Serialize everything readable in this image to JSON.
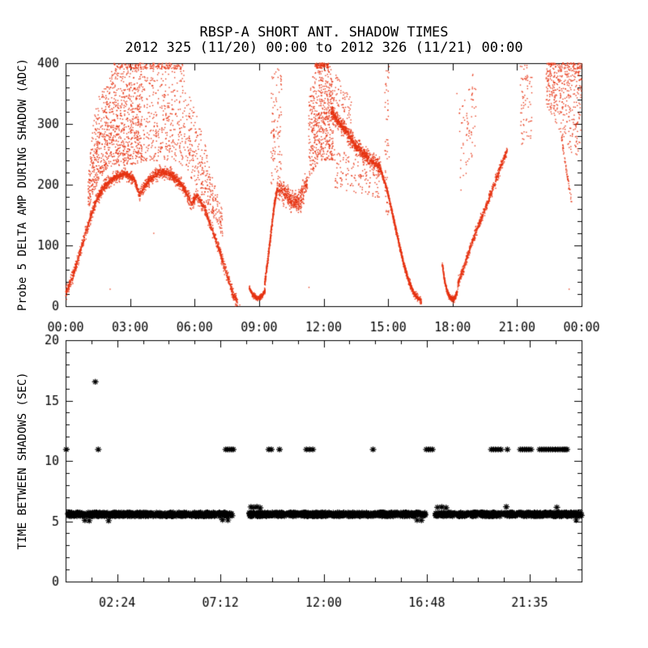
{
  "title": {
    "line1": "RBSP-A SHORT ANT. SHADOW TIMES",
    "line2": "2012 325 (11/20) 00:00 to 2012 326 (11/21) 00:00"
  },
  "colors": {
    "background": "#ffffff",
    "axis": "#000000",
    "top_points": "#e63312",
    "bottom_points": "#000000"
  },
  "chart_data": [
    {
      "type": "scatter",
      "panel": "top",
      "ylabel": "Probe 5 DELTA AMP DURING SHADOW (ADC)",
      "xlim": [
        0,
        24
      ],
      "ylim": [
        0,
        400
      ],
      "marker": "dot",
      "x_ticks": {
        "majors": [
          {
            "t": 0,
            "label": "00:00"
          },
          {
            "t": 3,
            "label": "03:00"
          },
          {
            "t": 6,
            "label": "06:00"
          },
          {
            "t": 9,
            "label": "09:00"
          },
          {
            "t": 12,
            "label": "12:00"
          },
          {
            "t": 15,
            "label": "15:00"
          },
          {
            "t": 18,
            "label": "18:00"
          },
          {
            "t": 21,
            "label": "21:00"
          },
          {
            "t": 24,
            "label": "00:00"
          }
        ],
        "minor_divs": 1
      },
      "y_ticks": {
        "majors": [
          0,
          100,
          200,
          300,
          400
        ],
        "minor_divs": 5
      },
      "clusters": [
        {
          "name": "arch1-band",
          "kind": "band",
          "core": true,
          "spread": 15,
          "n": 1700,
          "pts": [
            [
              0,
              20
            ],
            [
              0.35,
              50
            ],
            [
              0.7,
              92
            ],
            [
              1.05,
              135
            ],
            [
              1.4,
              172
            ],
            [
              1.8,
              198
            ],
            [
              2.3,
              212
            ],
            [
              2.8,
              218
            ],
            [
              3.2,
              208
            ],
            [
              3.45,
              183
            ],
            [
              3.65,
              196
            ],
            [
              3.95,
              210
            ],
            [
              4.4,
              221
            ],
            [
              4.9,
              217
            ],
            [
              5.3,
              204
            ],
            [
              5.6,
              188
            ],
            [
              5.85,
              168
            ],
            [
              6.1,
              183
            ],
            [
              6.45,
              162
            ],
            [
              6.8,
              128
            ],
            [
              7.15,
              92
            ],
            [
              7.5,
              52
            ],
            [
              7.8,
              18
            ],
            [
              8.0,
              6
            ]
          ]
        },
        {
          "name": "arch1-cloud-left",
          "kind": "cloud",
          "t": [
            1.05,
            3.55
          ],
          "bias": 0.7,
          "n": 1000,
          "lo": [
            [
              1.05,
              160
            ],
            [
              1.4,
              195
            ],
            [
              2.0,
              230
            ],
            [
              3.55,
              235
            ]
          ],
          "hi": [
            [
              1.05,
              230
            ],
            [
              1.35,
              320
            ],
            [
              1.7,
              365
            ],
            [
              2.25,
              400
            ],
            [
              3.55,
              400
            ]
          ]
        },
        {
          "name": "arch1-cloud-right",
          "kind": "cloud",
          "t": [
            3.55,
            7.3
          ],
          "bias": 0.75,
          "n": 650,
          "lo": [
            [
              3.55,
              238
            ],
            [
              5.0,
              240
            ],
            [
              6.0,
              205
            ],
            [
              7.3,
              115
            ]
          ],
          "hi": [
            [
              3.55,
              400
            ],
            [
              5.45,
              400
            ],
            [
              5.9,
              340
            ],
            [
              6.3,
              300
            ],
            [
              6.7,
              235
            ],
            [
              7.3,
              160
            ]
          ]
        },
        {
          "name": "arch1-top-clip",
          "kind": "cloud",
          "t": [
            2.25,
            5.45
          ],
          "n": 160,
          "lo": [
            [
              2.25,
              390
            ],
            [
              5.45,
              390
            ]
          ],
          "hi": [
            [
              2.25,
              400
            ],
            [
              5.45,
              400
            ]
          ]
        },
        {
          "name": "hump2-hook",
          "kind": "band",
          "core": true,
          "spread": 6,
          "n": 240,
          "pts": [
            [
              8.55,
              30
            ],
            [
              8.7,
              19
            ],
            [
              8.9,
              13
            ],
            [
              9.1,
              15
            ],
            [
              9.28,
              26
            ]
          ]
        },
        {
          "name": "hump2-rise",
          "kind": "band",
          "core": true,
          "spread": 13,
          "n": 260,
          "pts": [
            [
              9.25,
              32
            ],
            [
              9.4,
              75
            ],
            [
              9.55,
              120
            ],
            [
              9.7,
              165
            ],
            [
              9.85,
              195
            ]
          ]
        },
        {
          "name": "hump2-column",
          "kind": "cloud",
          "t": [
            9.55,
            10.05
          ],
          "n": 100,
          "lo": [
            [
              9.55,
              200
            ],
            [
              10.05,
              215
            ]
          ],
          "hi": [
            [
              9.55,
              392
            ],
            [
              10.05,
              390
            ]
          ]
        },
        {
          "name": "hump2-mid-band",
          "kind": "band",
          "spread": 26,
          "n": 430,
          "pts": [
            [
              9.85,
              195
            ],
            [
              10.2,
              185
            ],
            [
              10.6,
              170
            ],
            [
              10.95,
              178
            ],
            [
              11.25,
              205
            ]
          ]
        },
        {
          "name": "hump2-peak",
          "kind": "cloud",
          "t": [
            11.3,
            12.45
          ],
          "bias": 0.85,
          "n": 540,
          "lo": [
            [
              11.3,
              210
            ],
            [
              11.8,
              238
            ],
            [
              12.45,
              240
            ]
          ],
          "hi": [
            [
              11.3,
              335
            ],
            [
              11.55,
              398
            ],
            [
              12.25,
              400
            ],
            [
              12.45,
              360
            ]
          ]
        },
        {
          "name": "hump2-top-clip",
          "kind": "cloud",
          "t": [
            11.6,
            12.25
          ],
          "n": 90,
          "lo": [
            [
              11.6,
              392
            ],
            [
              12.25,
              392
            ]
          ],
          "hi": [
            [
              11.6,
              400
            ],
            [
              12.25,
              400
            ]
          ]
        },
        {
          "name": "hump2-upper-sparse",
          "kind": "cloud",
          "t": [
            12.25,
            13.3
          ],
          "n": 70,
          "lo": [
            [
              12.25,
              345
            ],
            [
              13.3,
              300
            ]
          ],
          "hi": [
            [
              12.25,
              400
            ],
            [
              13.3,
              340
            ]
          ]
        },
        {
          "name": "hump2-descend",
          "kind": "band",
          "core": true,
          "spread": 20,
          "n": 620,
          "pts": [
            [
              12.35,
              322
            ],
            [
              12.7,
              303
            ],
            [
              13.1,
              285
            ],
            [
              13.5,
              263
            ],
            [
              13.9,
              249
            ],
            [
              14.3,
              237
            ],
            [
              14.65,
              228
            ]
          ]
        },
        {
          "name": "hump2-below-sparse",
          "kind": "cloud",
          "t": [
            12.5,
            14.6
          ],
          "n": 130,
          "lo": [
            [
              12.5,
              195
            ],
            [
              14.6,
              178
            ]
          ],
          "hi": [
            [
              12.5,
              265
            ],
            [
              14.6,
              215
            ]
          ]
        },
        {
          "name": "column-1500",
          "kind": "cloud",
          "t": [
            14.85,
            15.05
          ],
          "n": 55,
          "lo": [
            [
              14.85,
              150
            ],
            [
              15.05,
              150
            ]
          ],
          "hi": [
            [
              14.85,
              400
            ],
            [
              15.05,
              400
            ]
          ]
        },
        {
          "name": "hump2-tail-main",
          "kind": "band",
          "core": true,
          "spread": 9,
          "n": 450,
          "pts": [
            [
              14.65,
              225
            ],
            [
              14.95,
              192
            ],
            [
              15.2,
              152
            ],
            [
              15.45,
              112
            ],
            [
              15.7,
              72
            ],
            [
              15.95,
              42
            ],
            [
              16.25,
              18
            ],
            [
              16.55,
              8
            ]
          ]
        },
        {
          "name": "hump2-tail-second",
          "kind": "band",
          "spread": 6,
          "n": 200,
          "pts": [
            [
              15.15,
              162
            ],
            [
              15.4,
              122
            ],
            [
              15.65,
              82
            ],
            [
              15.9,
              50
            ],
            [
              16.12,
              26
            ]
          ]
        },
        {
          "name": "hump3-hook",
          "kind": "band",
          "core": true,
          "spread": 7,
          "n": 290,
          "pts": [
            [
              17.52,
              70
            ],
            [
              17.62,
              44
            ],
            [
              17.75,
              24
            ],
            [
              17.9,
              13
            ],
            [
              18.08,
              11
            ],
            [
              18.22,
              24
            ]
          ]
        },
        {
          "name": "hump3-rise",
          "kind": "band",
          "core": true,
          "spread": 13,
          "n": 440,
          "pts": [
            [
              18.22,
              34
            ],
            [
              18.6,
              72
            ],
            [
              19.0,
              115
            ],
            [
              19.4,
              150
            ],
            [
              19.8,
              186
            ],
            [
              20.2,
              226
            ],
            [
              20.55,
              258
            ]
          ]
        },
        {
          "name": "hump3-upper-col1",
          "kind": "cloud",
          "t": [
            18.3,
            19.1
          ],
          "n": 70,
          "lo": [
            [
              18.3,
              180
            ],
            [
              19.1,
              265
            ]
          ],
          "hi": [
            [
              18.3,
              330
            ],
            [
              19.1,
              400
            ]
          ]
        },
        {
          "name": "hump3-upper-col2",
          "kind": "cloud",
          "t": [
            21.15,
            21.7
          ],
          "n": 70,
          "lo": [
            [
              21.15,
              262
            ],
            [
              21.7,
              272
            ]
          ],
          "hi": [
            [
              21.15,
              400
            ],
            [
              21.7,
              398
            ]
          ]
        },
        {
          "name": "cloud-right",
          "kind": "cloud",
          "t": [
            22.35,
            24.0
          ],
          "bias": 1.7,
          "n": 450,
          "lo": [
            [
              22.35,
              332
            ],
            [
              22.8,
              302
            ],
            [
              23.2,
              258
            ],
            [
              24,
              246
            ]
          ],
          "hi": [
            [
              22.35,
              400
            ],
            [
              24,
              400
            ]
          ]
        },
        {
          "name": "cloud-right-tail",
          "kind": "band",
          "spread": 9,
          "n": 60,
          "pts": [
            [
              23.0,
              293
            ],
            [
              23.15,
              258
            ],
            [
              23.3,
              222
            ],
            [
              23.45,
              188
            ],
            [
              23.55,
              172
            ]
          ]
        },
        {
          "name": "stray-points",
          "kind": "points",
          "pts": [
            [
              2.07,
              28
            ],
            [
              11.32,
              31
            ],
            [
              23.42,
              28
            ],
            [
              18.2,
              350
            ],
            [
              4.1,
              120
            ],
            [
              8.1,
              2
            ]
          ]
        }
      ]
    },
    {
      "type": "scatter",
      "panel": "bottom",
      "ylabel": "TIME BETWEEN SHADOWS (SEC)",
      "xlim": [
        0,
        24
      ],
      "ylim": [
        0,
        20
      ],
      "marker": "asterisk",
      "x_ticks": {
        "majors": [
          {
            "t": 2.4,
            "label": "02:24"
          },
          {
            "t": 7.2,
            "label": "07:12"
          },
          {
            "t": 12.0,
            "label": "12:00"
          },
          {
            "t": 16.8,
            "label": "16:48"
          },
          {
            "t": 21.583,
            "label": "21:35"
          }
        ],
        "minor_divs": 4
      },
      "y_ticks": {
        "majors": [
          0,
          5,
          10,
          15,
          20
        ],
        "minor_divs": 5
      },
      "band_value": 5.57,
      "band_jitter": 0.16,
      "band_per_hour": 62,
      "band_segments": [
        [
          0.12,
          7.76
        ],
        [
          8.55,
          16.74
        ],
        [
          17.22,
          24.0
        ]
      ],
      "row_value": 10.95,
      "row_times": [
        0.03,
        1.52,
        7.45,
        7.55,
        7.63,
        7.72,
        7.8,
        9.45,
        9.57,
        9.95,
        11.2,
        11.35,
        11.5,
        14.3,
        16.78,
        16.88,
        16.97,
        17.06,
        19.8,
        19.9,
        20.0,
        20.12,
        20.25,
        20.55,
        21.15,
        21.25,
        21.35,
        21.45,
        21.55,
        21.65,
        22.05,
        22.15,
        22.25,
        22.35,
        22.45,
        22.55,
        22.65,
        22.78,
        22.9,
        23.0,
        23.1,
        23.18,
        23.25,
        23.32
      ],
      "outlier": {
        "t": 1.38,
        "v": 16.55
      },
      "strays": [
        [
          0.9,
          5.08
        ],
        [
          1.1,
          5.05
        ],
        [
          2.0,
          5.05
        ],
        [
          7.3,
          5.12
        ],
        [
          7.55,
          5.1
        ],
        [
          8.62,
          6.18
        ],
        [
          8.75,
          6.15
        ],
        [
          8.9,
          6.2
        ],
        [
          9.05,
          6.12
        ],
        [
          17.3,
          6.15
        ],
        [
          17.5,
          6.18
        ],
        [
          17.7,
          6.12
        ],
        [
          16.35,
          5.1
        ],
        [
          16.55,
          5.08
        ],
        [
          20.5,
          6.2
        ],
        [
          22.85,
          6.15
        ],
        [
          23.75,
          5.1
        ]
      ]
    }
  ]
}
